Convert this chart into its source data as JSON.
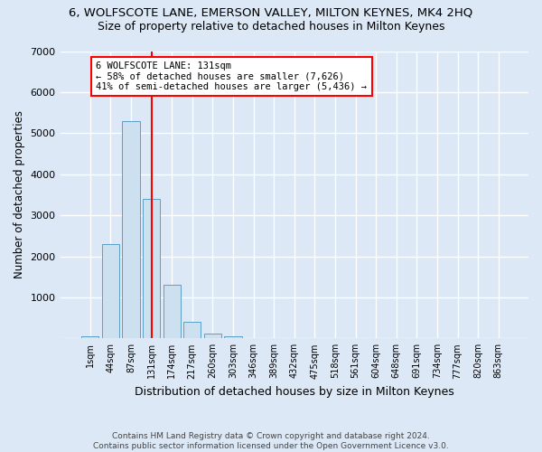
{
  "title_line1": "6, WOLFSCOTE LANE, EMERSON VALLEY, MILTON KEYNES, MK4 2HQ",
  "title_line2": "Size of property relative to detached houses in Milton Keynes",
  "xlabel": "Distribution of detached houses by size in Milton Keynes",
  "ylabel": "Number of detached properties",
  "footnote": "Contains HM Land Registry data © Crown copyright and database right 2024.\nContains public sector information licensed under the Open Government Licence v3.0.",
  "bar_labels": [
    "1sqm",
    "44sqm",
    "87sqm",
    "131sqm",
    "174sqm",
    "217sqm",
    "260sqm",
    "303sqm",
    "346sqm",
    "389sqm",
    "432sqm",
    "475sqm",
    "518sqm",
    "561sqm",
    "604sqm",
    "648sqm",
    "691sqm",
    "734sqm",
    "777sqm",
    "820sqm",
    "863sqm"
  ],
  "bar_values": [
    50,
    2300,
    5300,
    3400,
    1300,
    400,
    120,
    50,
    5,
    0,
    0,
    0,
    0,
    0,
    0,
    0,
    0,
    0,
    0,
    0,
    0
  ],
  "bar_color": "#cce0f0",
  "bar_edge_color": "#5a9fc8",
  "vline_x": 3,
  "vline_color": "red",
  "annotation_text": "6 WOLFSCOTE LANE: 131sqm\n← 58% of detached houses are smaller (7,626)\n41% of semi-detached houses are larger (5,436) →",
  "annotation_box_color": "white",
  "annotation_box_edge": "red",
  "ylim": [
    0,
    7000
  ],
  "yticks": [
    0,
    1000,
    2000,
    3000,
    4000,
    5000,
    6000,
    7000
  ],
  "bg_color": "#dce8f5",
  "plot_bg": "#dce8f5",
  "grid_color": "white",
  "title1_fontsize": 9.5,
  "title2_fontsize": 9,
  "xlabel_fontsize": 9,
  "ylabel_fontsize": 8.5
}
